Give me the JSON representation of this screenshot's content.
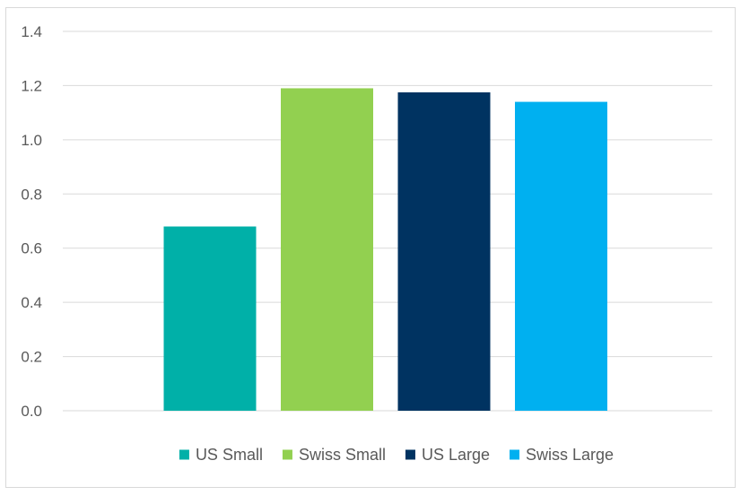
{
  "chart_data": {
    "type": "bar",
    "categories": [
      "US Small",
      "Swiss Small",
      "US Large",
      "Swiss Large"
    ],
    "values": [
      0.68,
      1.19,
      1.175,
      1.14
    ],
    "colors": [
      "#00b0a8",
      "#92d050",
      "#003361",
      "#00b0f0"
    ],
    "yticks": [
      "0.0",
      "0.2",
      "0.4",
      "0.6",
      "0.8",
      "1.0",
      "1.2",
      "1.4"
    ],
    "ylim": [
      0,
      1.4
    ],
    "grid": true,
    "legend": {
      "position": "bottom",
      "entries": [
        "US Small",
        "Swiss Small",
        "US Large",
        "Swiss Large"
      ]
    },
    "title": "",
    "xlabel": "",
    "ylabel": ""
  }
}
